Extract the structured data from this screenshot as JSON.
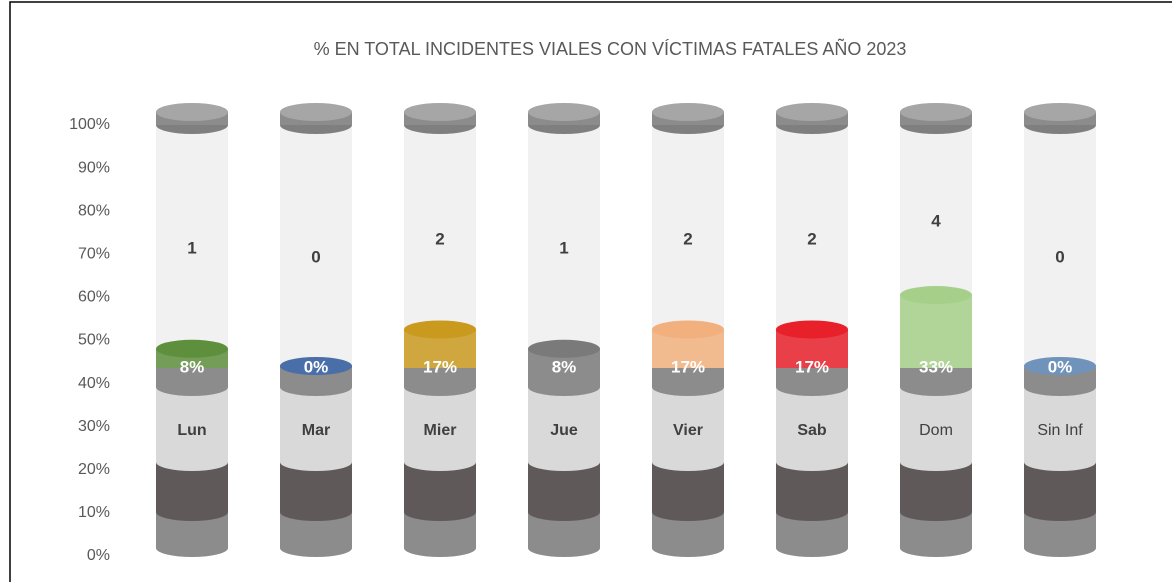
{
  "chart_data": {
    "type": "bar",
    "title": "% EN TOTAL INCIDENTES VIALES CON VÍCTIMAS FATALES AÑO 2023",
    "categories": [
      "Lun",
      "Mar",
      "Mier",
      "Jue",
      "Vier",
      "Sab",
      "Dom",
      "Sin Inf"
    ],
    "values": [
      8,
      0,
      17,
      8,
      17,
      17,
      33,
      0
    ],
    "value_labels": [
      "8%",
      "0%",
      "17%",
      "8%",
      "17%",
      "17%",
      "33%",
      "0%"
    ],
    "counts": [
      1,
      0,
      2,
      1,
      2,
      2,
      4,
      0
    ],
    "colors": [
      "#5e8f3c",
      "#4a6ea8",
      "#c99a1e",
      "#7a7a7a",
      "#f2b07e",
      "#e8202a",
      "#a6d08a",
      "#6f93bb"
    ],
    "ylim": [
      0,
      100
    ],
    "yticks": [
      {
        "value": 0,
        "label": "0%"
      },
      {
        "value": 10,
        "label": "10%"
      },
      {
        "value": 20,
        "label": "20%"
      },
      {
        "value": 30,
        "label": "30%"
      },
      {
        "value": 40,
        "label": "40%"
      },
      {
        "value": 50,
        "label": "50%"
      },
      {
        "value": 60,
        "label": "60%"
      },
      {
        "value": 70,
        "label": "70%"
      },
      {
        "value": 80,
        "label": "80%"
      },
      {
        "value": 90,
        "label": "90%"
      },
      {
        "value": 100,
        "label": "100%"
      }
    ]
  }
}
